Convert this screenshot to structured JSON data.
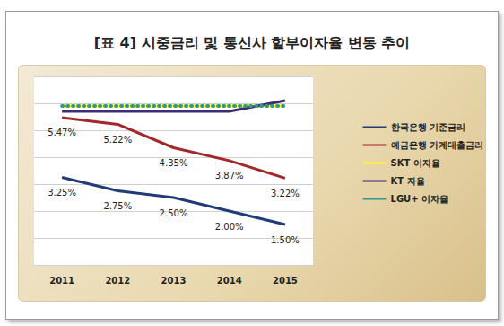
{
  "chart_data": {
    "type": "line",
    "title": "[표 4] 시중금리 및 통신사 할부이자율 변동 추이",
    "categories": [
      "2011",
      "2012",
      "2013",
      "2014",
      "2015"
    ],
    "series": [
      {
        "name": "한국은행 기준금리",
        "color": "#1f3b78",
        "values": [
          3.25,
          2.75,
          2.5,
          2.0,
          1.5
        ],
        "value_labels": [
          "3.25%",
          "2.75%",
          "2.50%",
          "2.00%",
          "1.50%"
        ],
        "line_style": "solid"
      },
      {
        "name": "예금은행 가계대출금리",
        "color": "#a3282b",
        "values": [
          5.47,
          5.22,
          4.35,
          3.87,
          3.22
        ],
        "value_labels": [
          "5.47%",
          "5.22%",
          "4.35%",
          "3.87%",
          "3.22%"
        ],
        "line_style": "solid"
      },
      {
        "name": "SKT 이자율",
        "color": "#ffff00",
        "values": [
          5.9,
          5.9,
          5.9,
          5.9,
          5.9
        ],
        "line_style": "solid"
      },
      {
        "name": "KT 자율",
        "color": "#3d2d6e",
        "values": [
          5.7,
          5.7,
          5.7,
          5.7,
          6.1
        ],
        "line_style": "solid"
      },
      {
        "name": "LGU+ 이자율",
        "color": "#2e9a8c",
        "values": [
          5.9,
          5.9,
          5.9,
          5.9,
          5.9
        ],
        "line_style": "dotted"
      }
    ],
    "ylim": [
      0,
      7
    ],
    "yticks": [
      0,
      1,
      2,
      3,
      4,
      5,
      6,
      7
    ],
    "grid": true,
    "legend": "right",
    "data_labels": true,
    "tick_labels": "x"
  }
}
